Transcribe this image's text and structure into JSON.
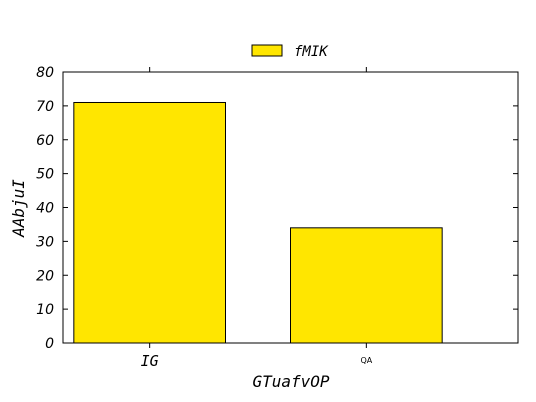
{
  "chart_data": {
    "type": "bar",
    "categories": [
      "IG",
      "QA"
    ],
    "series": [
      {
        "name": "fMIK",
        "values": [
          71,
          34
        ],
        "color": "#FFE600"
      }
    ],
    "xlabel": "GTuafvOP",
    "ylabel": "AAbjuI",
    "ylim": [
      0,
      80
    ],
    "yticks": [
      0,
      10,
      20,
      30,
      40,
      50,
      60,
      70,
      80
    ],
    "grid": false,
    "legend_position": "top-center"
  }
}
